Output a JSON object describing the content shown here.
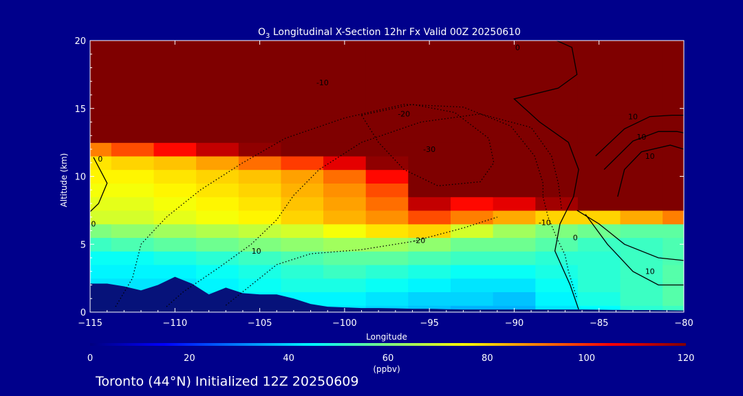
{
  "chart_data": {
    "type": "heatmap",
    "title": "O3 Longitudinal X-Section 12hr  Fx Valid 00Z 20250610",
    "title_species": "O",
    "title_subscript": "3",
    "title_rest": " Longitudinal X-Section 12hr  Fx Valid 00Z 20250610",
    "xlabel": "Longitude",
    "ylabel": "Altitude (km)",
    "xlim": [
      -115,
      -80
    ],
    "ylim": [
      0,
      20
    ],
    "x_ticks": [
      -115,
      -110,
      -105,
      -100,
      -95,
      -90,
      -85,
      -80
    ],
    "x_tick_labels": [
      "−115",
      "−110",
      "−105",
      "−100",
      "−95",
      "−90",
      "−85",
      "−80"
    ],
    "y_ticks": [
      0,
      5,
      10,
      15,
      20
    ],
    "y_tick_labels": [
      "0",
      "5",
      "10",
      "15",
      "20"
    ],
    "colorbar": {
      "min": 0,
      "max": 120,
      "ticks": [
        0,
        20,
        40,
        60,
        80,
        100,
        120
      ],
      "tick_labels": [
        "0",
        "20",
        "40",
        "60",
        "80",
        "100",
        "120"
      ],
      "unit": "(ppbv)"
    },
    "ozone_field_ppbv": {
      "lon": [
        -115,
        -112.5,
        -110,
        -107.5,
        -105,
        -102.5,
        -100,
        -97.5,
        -95,
        -92.5,
        -90,
        -87.5,
        -85,
        -82.5,
        -80
      ],
      "alt_km": [
        0,
        1,
        2,
        3,
        4,
        5,
        6,
        7,
        8,
        9,
        10,
        11,
        12,
        13,
        14,
        15,
        20
      ],
      "values": [
        [
          38,
          38,
          40,
          40,
          42,
          42,
          42,
          40,
          38,
          36,
          36,
          42,
          45,
          50,
          52
        ],
        [
          40,
          40,
          42,
          42,
          44,
          44,
          44,
          42,
          40,
          40,
          38,
          44,
          48,
          52,
          55
        ],
        [
          42,
          42,
          42,
          44,
          46,
          48,
          48,
          46,
          44,
          42,
          42,
          46,
          50,
          52,
          55
        ],
        [
          44,
          44,
          44,
          46,
          48,
          50,
          52,
          50,
          48,
          46,
          46,
          48,
          50,
          52,
          55
        ],
        [
          46,
          46,
          48,
          50,
          52,
          54,
          56,
          56,
          54,
          52,
          52,
          50,
          50,
          52,
          54
        ],
        [
          52,
          54,
          56,
          58,
          60,
          62,
          64,
          64,
          62,
          58,
          58,
          55,
          52,
          52,
          54
        ],
        [
          60,
          62,
          64,
          66,
          68,
          70,
          74,
          78,
          80,
          70,
          64,
          60,
          58,
          56,
          56
        ],
        [
          70,
          70,
          72,
          74,
          76,
          80,
          84,
          88,
          96,
          90,
          85,
          80,
          80,
          85,
          90
        ],
        [
          72,
          72,
          74,
          76,
          78,
          82,
          86,
          92,
          112,
          104,
          108,
          116,
          120,
          120,
          120
        ],
        [
          74,
          74,
          76,
          78,
          80,
          84,
          88,
          96,
          120,
          120,
          120,
          120,
          120,
          120,
          120
        ],
        [
          76,
          76,
          78,
          80,
          82,
          86,
          92,
          104,
          120,
          120,
          120,
          120,
          120,
          120,
          120
        ],
        [
          78,
          80,
          82,
          86,
          92,
          98,
          108,
          118,
          120,
          120,
          120,
          120,
          120,
          120,
          120
        ],
        [
          90,
          96,
          104,
          112,
          118,
          120,
          120,
          120,
          120,
          120,
          120,
          120,
          120,
          120,
          120
        ],
        [
          120,
          120,
          120,
          120,
          120,
          120,
          120,
          120,
          120,
          120,
          120,
          120,
          120,
          120,
          120
        ],
        [
          120,
          120,
          120,
          120,
          120,
          120,
          120,
          120,
          120,
          120,
          120,
          120,
          120,
          120,
          120
        ],
        [
          120,
          120,
          120,
          120,
          120,
          120,
          120,
          120,
          120,
          120,
          120,
          120,
          120,
          120,
          120
        ],
        [
          120,
          120,
          120,
          120,
          120,
          120,
          120,
          120,
          120,
          120,
          120,
          120,
          120,
          120,
          120
        ]
      ]
    },
    "terrain_km": {
      "lon": [
        -115,
        -114,
        -113,
        -112,
        -111,
        -110,
        -109,
        -108,
        -107,
        -106,
        -105,
        -104,
        -103,
        -102,
        -101,
        -100,
        -99,
        -98,
        -97,
        -96,
        -95,
        -94,
        -93,
        -92,
        -91,
        -90,
        -89,
        -88,
        -87,
        -86,
        -85,
        -84,
        -83,
        -82,
        -81,
        -80
      ],
      "height": [
        2.1,
        2.1,
        1.9,
        1.6,
        2.0,
        2.6,
        2.1,
        1.3,
        1.8,
        1.4,
        1.3,
        1.3,
        1.0,
        0.6,
        0.4,
        0.35,
        0.3,
        0.3,
        0.28,
        0.25,
        0.25,
        0.22,
        0.2,
        0.2,
        0.2,
        0.2,
        0.2,
        0.2,
        0.2,
        0.2,
        0.18,
        0.16,
        0.15,
        0.15,
        0.14,
        0.12
      ]
    },
    "contours": [
      {
        "style": "dotted",
        "label": "-10",
        "points": [
          [
            -110.5,
            0.4
          ],
          [
            -109.5,
            1.5
          ],
          [
            -107.5,
            3.2
          ],
          [
            -105.5,
            5.0
          ],
          [
            -104,
            6.8
          ],
          [
            -103,
            8.6
          ],
          [
            -101.5,
            10.5
          ],
          [
            -99,
            12.5
          ],
          [
            -95.5,
            14.0
          ],
          [
            -92,
            14.6
          ],
          [
            -89,
            13.6
          ],
          [
            -87.8,
            11.5
          ],
          [
            -87.4,
            9.5
          ],
          [
            -87.2,
            7.5
          ]
        ]
      },
      {
        "style": "dotted",
        "label": "-20",
        "points": [
          [
            -113.5,
            0.4
          ],
          [
            -112.5,
            2.5
          ],
          [
            -112,
            5.0
          ],
          [
            -110.5,
            7.0
          ],
          [
            -108.5,
            9.0
          ],
          [
            -106,
            11.0
          ],
          [
            -103.5,
            12.8
          ],
          [
            -100,
            14.3
          ],
          [
            -96.5,
            15.3
          ],
          [
            -93,
            15.1
          ],
          [
            -90.2,
            13.7
          ],
          [
            -88.8,
            11.5
          ],
          [
            -88.3,
            9.5
          ],
          [
            -88.3,
            8.5
          ]
        ]
      },
      {
        "style": "dotted",
        "label": "-10",
        "points": [
          [
            -88.3,
            8.5
          ],
          [
            -88.0,
            7.0
          ],
          [
            -87.5,
            5.5
          ],
          [
            -87.0,
            4.2
          ],
          [
            -86.8,
            3.0
          ],
          [
            -86.3,
            1.0
          ]
        ]
      },
      {
        "style": "dotted",
        "label": "-20",
        "points": [
          [
            -107,
            0.5
          ],
          [
            -105.5,
            2.0
          ],
          [
            -104,
            3.5
          ],
          [
            -102,
            4.3
          ],
          [
            -99,
            4.6
          ],
          [
            -96,
            5.2
          ],
          [
            -93,
            6.2
          ],
          [
            -91,
            7.0
          ]
        ]
      },
      {
        "style": "dotted",
        "label": "-30",
        "points": [
          [
            -99,
            14.5
          ],
          [
            -96,
            15.3
          ],
          [
            -93.5,
            14.7
          ],
          [
            -91.5,
            12.8
          ],
          [
            -91.2,
            11
          ],
          [
            -92,
            9.6
          ],
          [
            -94.5,
            9.3
          ],
          [
            -96.5,
            10.5
          ],
          [
            -98,
            12.5
          ],
          [
            -99,
            14.5
          ]
        ]
      },
      {
        "style": "solid",
        "label": "0",
        "points": [
          [
            -87.5,
            20
          ],
          [
            -86.6,
            19.5
          ],
          [
            -86.3,
            17.5
          ],
          [
            -87.4,
            16.5
          ],
          [
            -90.0,
            15.7
          ],
          [
            -88.5,
            14.0
          ],
          [
            -86.8,
            12.5
          ],
          [
            -86.2,
            10.5
          ],
          [
            -86.5,
            8.5
          ],
          [
            -87.3,
            6.5
          ],
          [
            -87.6,
            4.5
          ],
          [
            -86.7,
            2.0
          ],
          [
            -86.2,
            0.2
          ]
        ]
      },
      {
        "style": "solid",
        "label": "10",
        "points": [
          [
            -85.2,
            11.5
          ],
          [
            -83.5,
            13.5
          ],
          [
            -82.0,
            14.4
          ],
          [
            -80.7,
            14.5
          ],
          [
            -80,
            14.5
          ]
        ]
      },
      {
        "style": "solid",
        "label": "10",
        "points": [
          [
            -84.7,
            10.5
          ],
          [
            -83,
            12.6
          ],
          [
            -81.5,
            13.3
          ],
          [
            -80.4,
            13.3
          ],
          [
            -80,
            13.2
          ]
        ]
      },
      {
        "style": "solid",
        "label": "10",
        "points": [
          [
            -83.9,
            8.5
          ],
          [
            -83.5,
            10.5
          ],
          [
            -82.5,
            11.8
          ],
          [
            -80.8,
            12.3
          ],
          [
            -80,
            12.0
          ]
        ]
      },
      {
        "style": "solid",
        "label": "10",
        "points": [
          [
            -86.3,
            7.5
          ],
          [
            -85,
            6.5
          ],
          [
            -83.5,
            5.0
          ],
          [
            -81.5,
            4.0
          ],
          [
            -80,
            3.8
          ]
        ]
      },
      {
        "style": "solid",
        "label": "10",
        "points": [
          [
            -85.8,
            7.2
          ],
          [
            -84.5,
            5.0
          ],
          [
            -83.0,
            3.0
          ],
          [
            -81.5,
            2.0
          ],
          [
            -80,
            2.0
          ]
        ]
      },
      {
        "style": "solid",
        "label": "0",
        "points": [
          [
            -114.8,
            11.4
          ],
          [
            -114.0,
            9.5
          ],
          [
            -114.5,
            8.0
          ],
          [
            -115,
            7.4
          ]
        ]
      }
    ],
    "contour_label_text": [
      {
        "text": "-10",
        "x": -101.3,
        "y": 16.7
      },
      {
        "text": "-20",
        "x": -96.5,
        "y": 14.4
      },
      {
        "text": "-30",
        "x": -95.0,
        "y": 11.8
      },
      {
        "text": "-20",
        "x": -95.6,
        "y": 5.1
      },
      {
        "text": "-10",
        "x": -88.2,
        "y": 6.4
      },
      {
        "text": "10",
        "x": -105.2,
        "y": 4.3
      },
      {
        "text": "0",
        "x": -86.4,
        "y": 5.3
      },
      {
        "text": "0",
        "x": -89.8,
        "y": 19.3
      },
      {
        "text": "10",
        "x": -83.0,
        "y": 14.2
      },
      {
        "text": "10",
        "x": -82.5,
        "y": 12.7
      },
      {
        "text": "10",
        "x": -82.0,
        "y": 11.3
      },
      {
        "text": "10",
        "x": -82.0,
        "y": 2.8
      },
      {
        "text": "0",
        "x": -114.4,
        "y": 11.1
      },
      {
        "text": "0",
        "x": -114.8,
        "y": 6.3
      }
    ],
    "colors": {
      "background": "#00008b",
      "axis": "#ffffff",
      "terrain": "#06127a",
      "colormap": [
        "#00007f",
        "#0000ff",
        "#007fff",
        "#00ffff",
        "#7fff7f",
        "#ffff00",
        "#ff7f00",
        "#ff0000",
        "#7f0000"
      ]
    },
    "grid": false
  },
  "footer": {
    "station": "Toronto (44°N) Initialized 12Z 20250609"
  }
}
